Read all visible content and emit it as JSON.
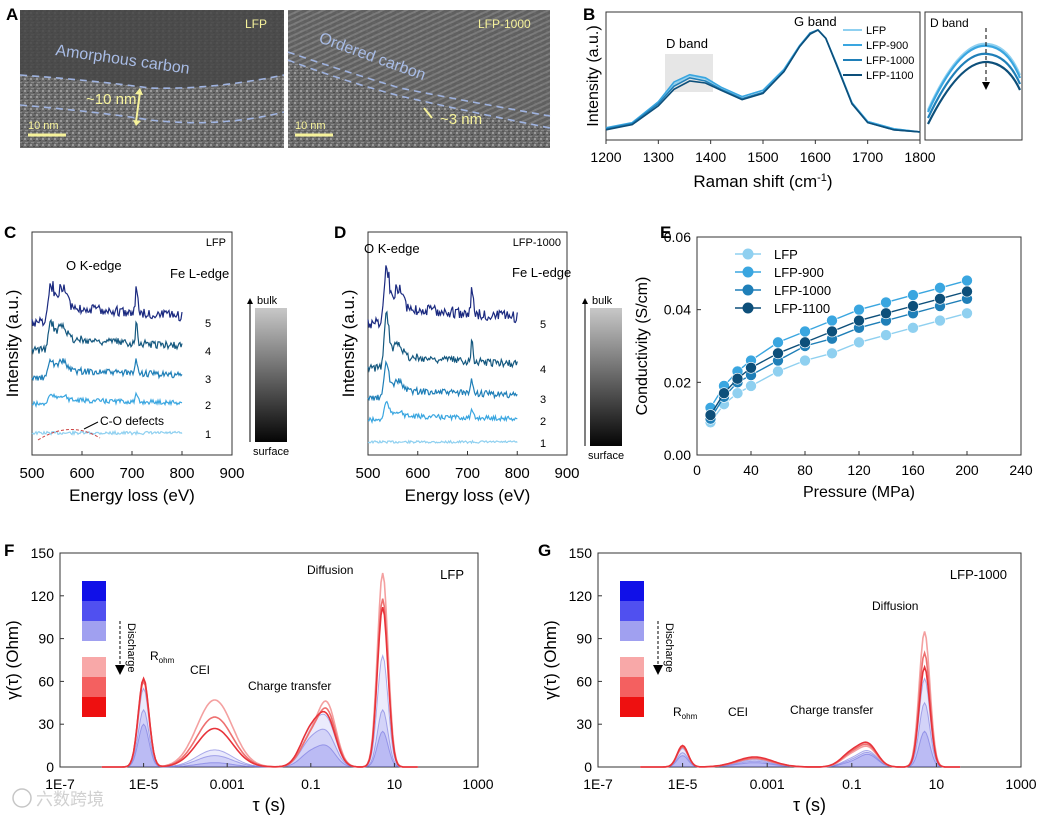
{
  "panels": {
    "A": {
      "letter": "A",
      "left": {
        "label": "LFP",
        "layer": "Amorphous carbon",
        "thickness": "~10 nm",
        "scale": "10 nm"
      },
      "right": {
        "label": "LFP-1000",
        "layer": "Ordered carbon",
        "thickness": "~3 nm",
        "scale": "10 nm"
      }
    },
    "B": {
      "letter": "B",
      "inset_label": "D band",
      "band_d": "D band",
      "band_g": "G band"
    },
    "C": {
      "letter": "C",
      "tag": "LFP",
      "peak_o": "O K-edge",
      "peak_fe": "Fe L-edge",
      "defects": "C-O defects",
      "bulk": "bulk",
      "surface": "surface"
    },
    "D": {
      "letter": "D",
      "tag": "LFP-1000",
      "peak_o": "O K-edge",
      "peak_fe": "Fe L-edge",
      "bulk": "bulk",
      "surface": "surface"
    },
    "E": {
      "letter": "E"
    },
    "F": {
      "letter": "F",
      "tag": "LFP",
      "discharge": "Discharge",
      "r_ohm": "R",
      "r_sub": "ohm",
      "cei": "CEI",
      "charge_transfer": "Charge transfer",
      "diffusion": "Diffusion"
    },
    "G": {
      "letter": "G",
      "tag": "LFP-1000",
      "discharge": "Discharge",
      "r_ohm": "R",
      "r_sub": "ohm",
      "cei": "CEI",
      "charge_transfer": "Charge transfer",
      "diffusion": "Diffusion"
    }
  },
  "watermark": "六数跨境",
  "colors": {
    "s1": "#8fd0f0",
    "s2": "#3aa6e0",
    "s3": "#1f7fb8",
    "s4": "#0d4f7a",
    "red": "#e8333a",
    "blue": "#3a3ae0"
  },
  "chart_data": [
    {
      "id": "B",
      "type": "line",
      "xlabel": "Raman shift (cm-1)",
      "ylabel": "Intensity (a.u.)",
      "xlim": [
        1200,
        1800
      ],
      "xticks": [
        1200,
        1300,
        1400,
        1500,
        1600,
        1700,
        1800
      ],
      "series": [
        {
          "name": "LFP",
          "x": [
            1200,
            1250,
            1300,
            1330,
            1360,
            1390,
            1420,
            1460,
            1500,
            1540,
            1570,
            1590,
            1605,
            1620,
            1640,
            1670,
            1700,
            1750,
            1800
          ],
          "y": [
            0.05,
            0.1,
            0.3,
            0.48,
            0.56,
            0.53,
            0.44,
            0.36,
            0.42,
            0.62,
            0.85,
            0.97,
            1.0,
            0.92,
            0.68,
            0.3,
            0.12,
            0.05,
            0.02
          ]
        },
        {
          "name": "LFP-900",
          "x": [
            1200,
            1250,
            1300,
            1330,
            1360,
            1390,
            1420,
            1460,
            1500,
            1540,
            1570,
            1590,
            1605,
            1620,
            1640,
            1670,
            1700,
            1750,
            1800
          ],
          "y": [
            0.06,
            0.11,
            0.31,
            0.5,
            0.57,
            0.54,
            0.45,
            0.36,
            0.42,
            0.62,
            0.85,
            0.97,
            1.0,
            0.92,
            0.68,
            0.3,
            0.12,
            0.05,
            0.02
          ]
        },
        {
          "name": "LFP-1000",
          "x": [
            1200,
            1250,
            1300,
            1330,
            1360,
            1390,
            1420,
            1460,
            1500,
            1540,
            1570,
            1590,
            1605,
            1620,
            1640,
            1670,
            1700,
            1750,
            1800
          ],
          "y": [
            0.05,
            0.1,
            0.29,
            0.46,
            0.54,
            0.51,
            0.43,
            0.34,
            0.4,
            0.6,
            0.84,
            0.97,
            1.0,
            0.92,
            0.67,
            0.29,
            0.11,
            0.04,
            0.02
          ]
        },
        {
          "name": "LFP-1100",
          "x": [
            1200,
            1250,
            1300,
            1330,
            1360,
            1390,
            1420,
            1460,
            1500,
            1540,
            1570,
            1590,
            1605,
            1620,
            1640,
            1670,
            1700,
            1750,
            1800
          ],
          "y": [
            0.04,
            0.09,
            0.27,
            0.43,
            0.51,
            0.49,
            0.42,
            0.33,
            0.39,
            0.6,
            0.84,
            0.96,
            1.0,
            0.92,
            0.67,
            0.29,
            0.11,
            0.04,
            0.02
          ]
        }
      ]
    },
    {
      "id": "C",
      "type": "line",
      "xlabel": "Energy loss (eV)",
      "ylabel": "Intensity (a.u.)",
      "xlim": [
        500,
        900
      ],
      "xticks": [
        500,
        600,
        700,
        800,
        900
      ],
      "traces": [
        "1",
        "2",
        "3",
        "4",
        "5"
      ]
    },
    {
      "id": "D",
      "type": "line",
      "xlabel": "Energy loss (eV)",
      "ylabel": "Intensity (a.u.)",
      "xlim": [
        500,
        900
      ],
      "xticks": [
        500,
        600,
        700,
        800,
        900
      ],
      "traces": [
        "1",
        "2",
        "3",
        "4",
        "5"
      ]
    },
    {
      "id": "E",
      "type": "line",
      "xlabel": "Pressure (MPa)",
      "ylabel": "Conductivity (S/cm)",
      "xlim": [
        0,
        240
      ],
      "ylim": [
        0,
        0.06
      ],
      "xticks": [
        0,
        40,
        80,
        120,
        160,
        200,
        240
      ],
      "yticks": [
        "0.00",
        "0.02",
        "0.04",
        "0.06"
      ],
      "x": [
        10,
        20,
        30,
        40,
        60,
        80,
        100,
        120,
        140,
        160,
        180,
        200
      ],
      "series": [
        {
          "name": "LFP",
          "values": [
            0.009,
            0.014,
            0.017,
            0.019,
            0.023,
            0.026,
            0.028,
            0.031,
            0.033,
            0.035,
            0.037,
            0.039
          ]
        },
        {
          "name": "LFP-900",
          "values": [
            0.013,
            0.019,
            0.023,
            0.026,
            0.031,
            0.034,
            0.037,
            0.04,
            0.042,
            0.044,
            0.046,
            0.048
          ]
        },
        {
          "name": "LFP-1000",
          "values": [
            0.01,
            0.016,
            0.02,
            0.022,
            0.026,
            0.03,
            0.032,
            0.035,
            0.037,
            0.039,
            0.041,
            0.043
          ]
        },
        {
          "name": "LFP-1100",
          "values": [
            0.011,
            0.017,
            0.021,
            0.024,
            0.028,
            0.031,
            0.034,
            0.037,
            0.039,
            0.041,
            0.043,
            0.045
          ]
        }
      ]
    },
    {
      "id": "F",
      "type": "area",
      "xlabel": "τ (s)",
      "ylabel": "γ(τ) (Ohm)",
      "ylim": [
        0,
        150
      ],
      "yticks": [
        0,
        30,
        60,
        90,
        120,
        150
      ],
      "xticks": [
        "1E-7",
        "1E-5",
        "0.001",
        "0.1",
        "10",
        "1000"
      ],
      "peaks": {
        "R_ohm": 62,
        "CEI": 47,
        "Diffusion": 136
      }
    },
    {
      "id": "G",
      "type": "area",
      "xlabel": "τ (s)",
      "ylabel": "γ(τ) (Ohm)",
      "ylim": [
        0,
        150
      ],
      "yticks": [
        0,
        30,
        60,
        90,
        120,
        150
      ],
      "xticks": [
        "1E-7",
        "1E-5",
        "0.001",
        "0.1",
        "10",
        "1000"
      ],
      "peaks": {
        "R_ohm": 15,
        "Diffusion": 95
      }
    }
  ]
}
